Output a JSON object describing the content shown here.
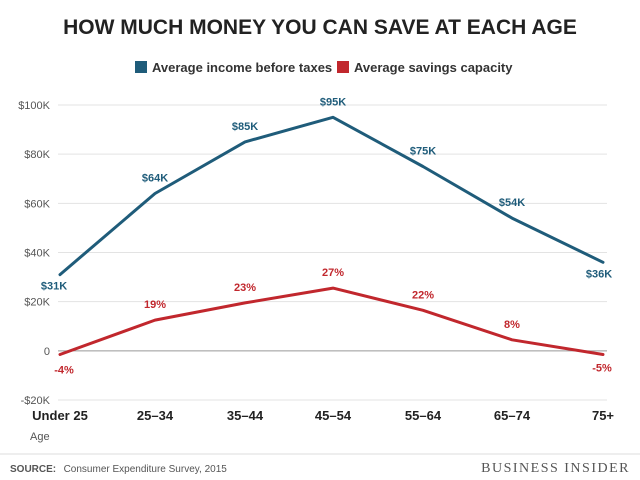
{
  "chart_data": {
    "type": "line",
    "title": "HOW MUCH MONEY YOU CAN SAVE AT EACH AGE",
    "xlabel": "Age",
    "ylabel": "",
    "categories": [
      "Under 25",
      "25–34",
      "35–44",
      "45–54",
      "55–64",
      "65–74",
      "75+"
    ],
    "yticks": [
      {
        "value": -20000,
        "label": "-$20K"
      },
      {
        "value": 0,
        "label": "0"
      },
      {
        "value": 20000,
        "label": "$20K"
      },
      {
        "value": 40000,
        "label": "$40K"
      },
      {
        "value": 60000,
        "label": "$60K"
      },
      {
        "value": 80000,
        "label": "$80K"
      },
      {
        "value": 100000,
        "label": "$100K"
      }
    ],
    "ylim": [
      -20000,
      100000
    ],
    "grid": true,
    "legend_position": "top-center",
    "series": [
      {
        "name": "Average income before taxes",
        "color": "#1f5c7a",
        "values": [
          31000,
          64000,
          85000,
          95000,
          75000,
          54000,
          36000
        ],
        "labels": [
          "$31K",
          "$64K",
          "$85K",
          "$95K",
          "$75K",
          "$54K",
          "$36K"
        ]
      },
      {
        "name": "Average savings capacity",
        "color": "#c1272d",
        "values": [
          -1500,
          12500,
          19500,
          25500,
          16500,
          4500,
          -1500
        ],
        "labels": [
          "-4%",
          "19%",
          "23%",
          "27%",
          "22%",
          "8%",
          "-5%"
        ]
      }
    ]
  },
  "footer": {
    "source_label": "SOURCE:",
    "source_text": "Consumer Expenditure Survey, 2015",
    "brand": "BUSINESS INSIDER"
  }
}
